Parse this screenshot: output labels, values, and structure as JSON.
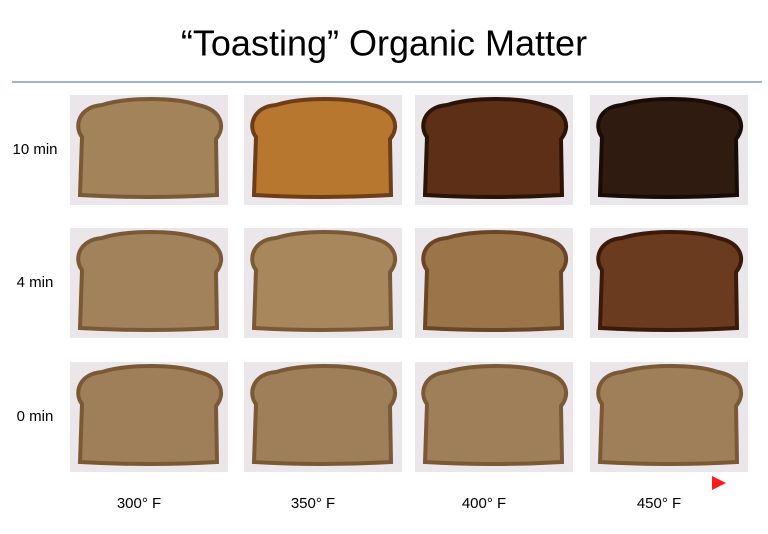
{
  "title": "“Toasting” Organic Matter",
  "rows": [
    "10 min",
    "4 min",
    "0 min"
  ],
  "columns": [
    "300° F",
    "350° F",
    "400° F",
    "450° F"
  ]
}
